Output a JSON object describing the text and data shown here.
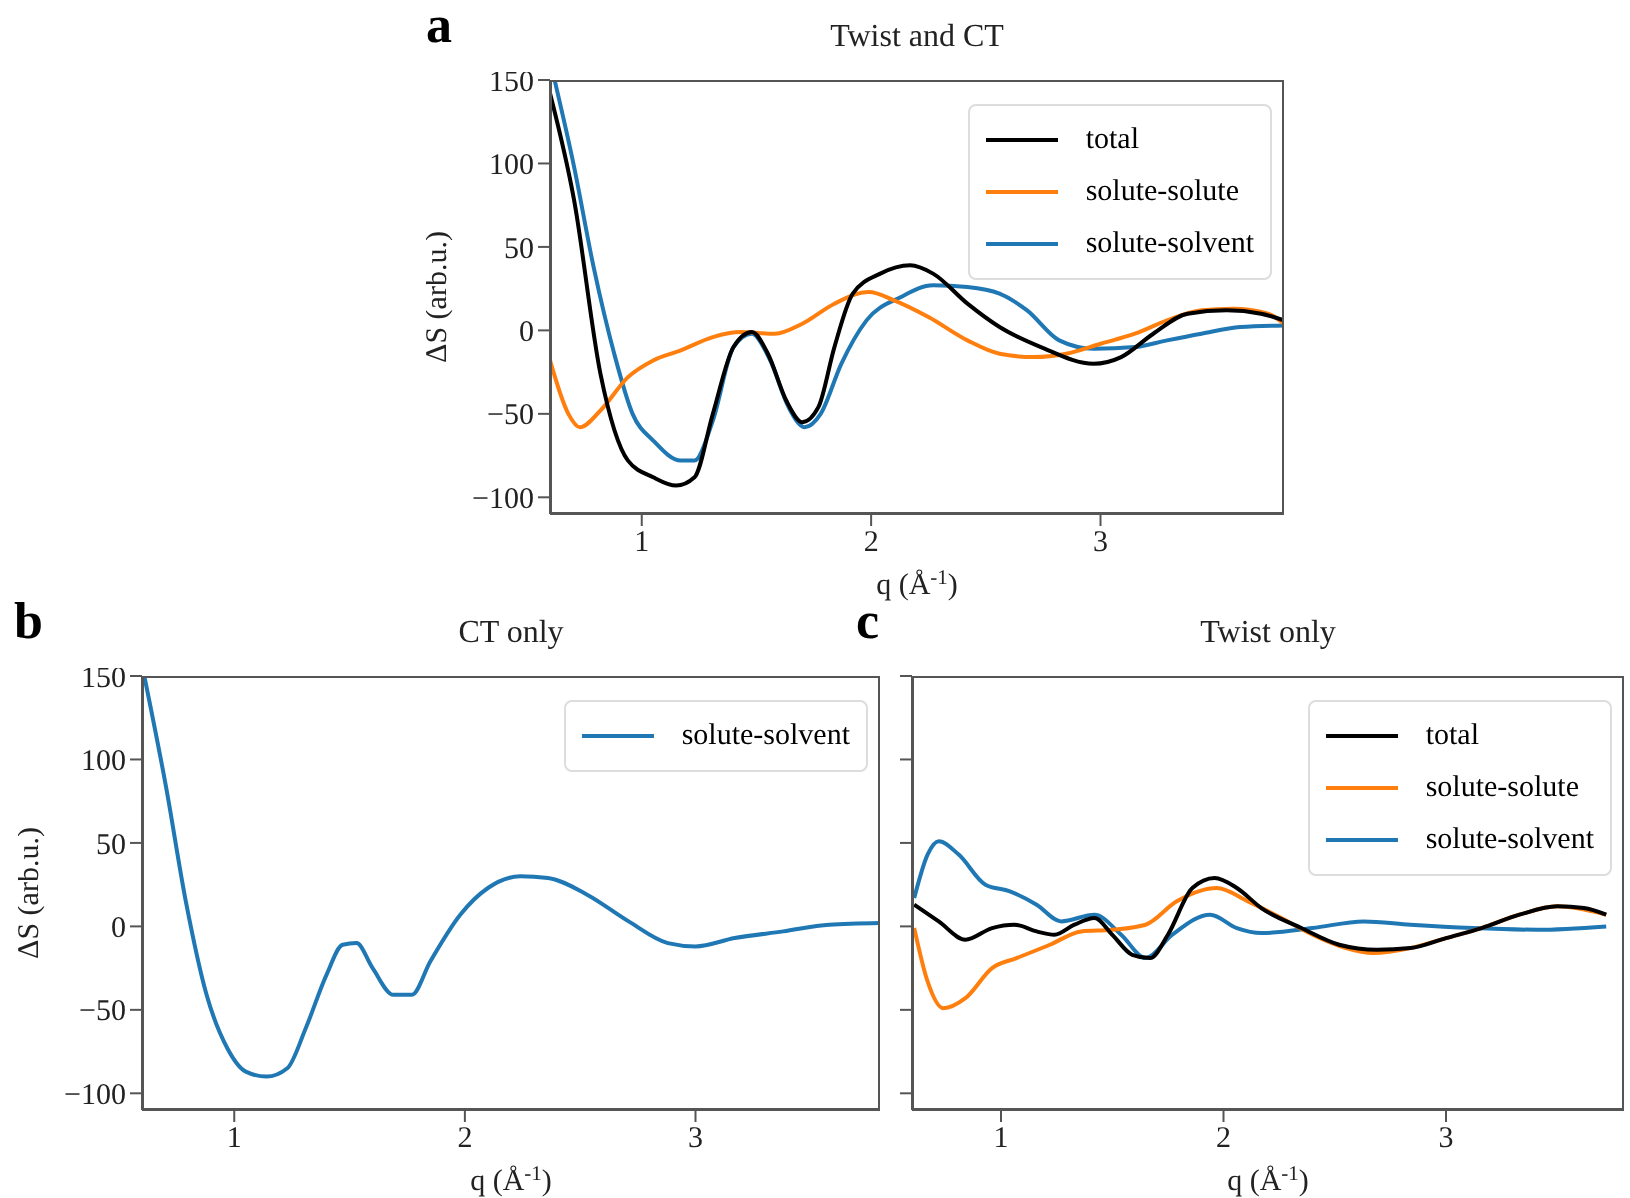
{
  "chart_data": [
    {
      "type": "line",
      "title": "Twist and CT",
      "xlabel": "q (Å$^{-1}$)",
      "ylabel": "ΔS (arb.u.)",
      "annotations": [
        "a"
      ],
      "xlim": [
        0.6,
        3.8
      ],
      "ylim": [
        -110,
        150
      ],
      "xticks": [
        1,
        2,
        3
      ],
      "yticks": [
        -100,
        -50,
        0,
        50,
        100,
        150
      ],
      "legend": "top right",
      "marker": "none",
      "line_style": "solid",
      "series": [
        {
          "name": "total",
          "color": "#000000",
          "x": [
            0.6,
            0.705,
            0.82,
            0.94,
            1.05,
            1.15,
            1.23,
            1.31,
            1.4,
            1.48,
            1.55,
            1.63,
            1.7,
            1.77,
            1.84,
            1.92,
            2.04,
            2.17,
            2.27,
            2.42,
            2.56,
            2.74,
            2.97,
            3.09,
            3.23,
            3.38,
            3.55,
            3.7,
            3.8
          ],
          "values": [
            142,
            78,
            -26,
            -78,
            -88,
            -93,
            -88,
            -50,
            -10,
            -1,
            -14,
            -42,
            -55,
            -46,
            -10,
            22,
            34,
            39,
            34,
            16,
            2,
            -10,
            -20,
            -16,
            -2,
            10,
            12,
            10,
            6
          ]
        },
        {
          "name": "solute-solute",
          "color": "#ff7f0e",
          "x": [
            0.6,
            0.68,
            0.73,
            0.82,
            0.94,
            1.05,
            1.17,
            1.31,
            1.43,
            1.58,
            1.7,
            1.84,
            1.99,
            2.1,
            2.25,
            2.42,
            2.56,
            2.71,
            2.85,
            3.0,
            3.15,
            3.29,
            3.44,
            3.58,
            3.73,
            3.8
          ],
          "values": [
            -18,
            -50,
            -58,
            -48,
            -28,
            -18,
            -12,
            -4,
            -1,
            -2,
            4,
            16,
            23,
            18,
            8,
            -6,
            -14,
            -16,
            -14,
            -8,
            -2,
            6,
            12,
            13,
            10,
            4
          ]
        },
        {
          "name": "solute-solvent",
          "color": "#1f77b4",
          "x": [
            0.62,
            0.705,
            0.79,
            0.88,
            0.96,
            1.05,
            1.17,
            1.23,
            1.31,
            1.4,
            1.48,
            1.56,
            1.64,
            1.71,
            1.78,
            1.87,
            1.98,
            2.13,
            2.27,
            2.42,
            2.56,
            2.68,
            2.82,
            2.97,
            3.15,
            3.29,
            3.44,
            3.61,
            3.8
          ],
          "values": [
            150,
            98,
            38,
            -14,
            -50,
            -66,
            -78,
            -78,
            -54,
            -10,
            -2,
            -18,
            -46,
            -58,
            -50,
            -20,
            6,
            20,
            27,
            26,
            22,
            12,
            -6,
            -11,
            -10,
            -6,
            -2,
            2,
            3
          ]
        }
      ]
    },
    {
      "type": "line",
      "title": "CT only",
      "xlabel": "q (Å$^{-1}$)",
      "ylabel": "ΔS (arb.u.)",
      "annotations": [
        "b"
      ],
      "xlim": [
        0.6,
        3.8
      ],
      "ylim": [
        -110,
        150
      ],
      "xticks": [
        1,
        2,
        3
      ],
      "yticks": [
        -100,
        -50,
        0,
        50,
        100,
        150
      ],
      "legend": "top right",
      "marker": "none",
      "line_style": "solid",
      "series": [
        {
          "name": "solute-solvent",
          "color": "#1f77b4",
          "x": [
            0.61,
            0.705,
            0.79,
            0.88,
            0.97,
            1.05,
            1.14,
            1.23,
            1.31,
            1.4,
            1.47,
            1.53,
            1.6,
            1.69,
            1.77,
            1.85,
            1.98,
            2.1,
            2.24,
            2.36,
            2.53,
            2.71,
            2.88,
            3.0,
            3.17,
            3.38,
            3.58,
            3.8
          ],
          "values": [
            150,
            83,
            15,
            -41,
            -73,
            -87,
            -90,
            -85,
            -61,
            -29,
            -11,
            -10,
            -25,
            -41,
            -41,
            -21,
            7,
            23,
            30,
            29,
            19,
            3,
            -10,
            -12,
            -7,
            -3,
            1,
            2
          ]
        }
      ]
    },
    {
      "type": "line",
      "title": "Twist only",
      "xlabel": "q (Å$^{-1}$)",
      "annotations": [
        "c"
      ],
      "xlim": [
        0.6,
        3.8
      ],
      "ylim": [
        -110,
        150
      ],
      "xticks": [
        1,
        2,
        3
      ],
      "yticks": [
        -100,
        -50,
        0,
        50,
        100,
        150
      ],
      "tick_labels": "x",
      "legend": "top right",
      "marker": "none",
      "line_style": "solid",
      "series": [
        {
          "name": "total",
          "color": "#000000",
          "x": [
            0.61,
            0.72,
            0.84,
            0.96,
            1.06,
            1.16,
            1.24,
            1.33,
            1.42,
            1.5,
            1.59,
            1.67,
            1.75,
            1.86,
            1.96,
            2.06,
            2.17,
            2.35,
            2.52,
            2.69,
            2.84,
            3.0,
            3.16,
            3.33,
            3.5,
            3.62,
            3.72
          ],
          "values": [
            13,
            3,
            -8,
            -1,
            1,
            -3,
            -5,
            1,
            5,
            -5,
            -17,
            -19,
            -5,
            23,
            29,
            23,
            11,
            -1,
            -11,
            -14,
            -13,
            -7,
            -1,
            7,
            12,
            11,
            7
          ]
        },
        {
          "name": "solute-solute",
          "color": "#ff7f0e",
          "x": [
            0.61,
            0.67,
            0.74,
            0.84,
            0.96,
            1.07,
            1.22,
            1.36,
            1.5,
            1.65,
            1.79,
            1.97,
            2.11,
            2.26,
            2.4,
            2.55,
            2.67,
            2.84,
            3.0,
            3.16,
            3.33,
            3.5,
            3.72
          ],
          "values": [
            -1,
            -33,
            -49,
            -43,
            -25,
            -19,
            -11,
            -3,
            -2,
            1,
            15,
            23,
            15,
            5,
            -5,
            -13,
            -16,
            -13,
            -7,
            -1,
            7,
            12,
            7
          ]
        },
        {
          "name": "solute-solvent",
          "color": "#1f77b4",
          "x": [
            0.61,
            0.67,
            0.72,
            0.81,
            0.93,
            1.04,
            1.16,
            1.27,
            1.42,
            1.54,
            1.65,
            1.77,
            1.94,
            2.06,
            2.17,
            2.4,
            2.63,
            2.84,
            3.12,
            3.41,
            3.72
          ],
          "values": [
            17,
            43,
            51,
            43,
            25,
            21,
            13,
            3,
            7,
            -5,
            -19,
            -5,
            7,
            -1,
            -4,
            -1,
            3,
            1,
            -1,
            -2,
            0
          ]
        }
      ]
    }
  ]
}
